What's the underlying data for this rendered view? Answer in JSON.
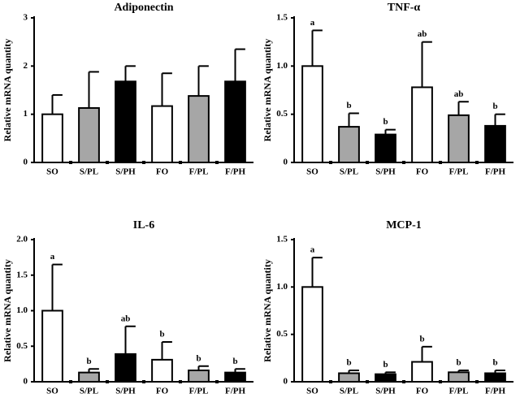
{
  "chart_data": [
    {
      "type": "bar",
      "title": "Adiponectin",
      "y_label": "Relative mRNA quantity",
      "categories": [
        "SO",
        "S/PL",
        "S/PH",
        "FO",
        "F/PL",
        "F/PH"
      ],
      "values": [
        1.0,
        1.13,
        1.68,
        1.17,
        1.38,
        1.68
      ],
      "errors": [
        0.4,
        0.75,
        0.32,
        0.68,
        0.62,
        0.67
      ],
      "colors": [
        "#ffffff",
        "#a6a6a6",
        "#000000",
        "#ffffff",
        "#a6a6a6",
        "#000000"
      ],
      "ylim": [
        0,
        3
      ],
      "yticks": [
        0,
        1,
        2,
        3
      ]
    },
    {
      "type": "bar",
      "title": "TNF-α",
      "y_label": "Relative mRNA quantity",
      "categories": [
        "SO",
        "S/PL",
        "S/PH",
        "FO",
        "F/PL",
        "F/PH"
      ],
      "values": [
        1.0,
        0.37,
        0.29,
        0.78,
        0.49,
        0.38
      ],
      "errors": [
        0.37,
        0.14,
        0.05,
        0.47,
        0.14,
        0.12
      ],
      "annotations": [
        "a",
        "b",
        "b",
        "ab",
        "ab",
        "b"
      ],
      "colors": [
        "#ffffff",
        "#a6a6a6",
        "#000000",
        "#ffffff",
        "#a6a6a6",
        "#000000"
      ],
      "ylim": [
        0,
        1.5
      ],
      "yticks": [
        0,
        0.5,
        {
          "value": 1,
          "label": "1.0"
        },
        1.5
      ]
    },
    {
      "type": "bar",
      "title": "IL-6",
      "y_label": "Relative mRNA quantity",
      "categories": [
        "SO",
        "S/PL",
        "S/PH",
        "FO",
        "F/PL",
        "F/PH"
      ],
      "values": [
        1.0,
        0.13,
        0.39,
        0.31,
        0.16,
        0.13
      ],
      "errors": [
        0.65,
        0.05,
        0.39,
        0.25,
        0.06,
        0.05
      ],
      "annotations": [
        "a",
        "b",
        "ab",
        "b",
        "b",
        "b"
      ],
      "colors": [
        "#ffffff",
        "#a6a6a6",
        "#000000",
        "#ffffff",
        "#a6a6a6",
        "#000000"
      ],
      "ylim": [
        0,
        2
      ],
      "yticks": [
        0,
        0.5,
        {
          "value": 1,
          "label": "1.0"
        },
        1.5,
        {
          "value": 2,
          "label": "2.0"
        }
      ]
    },
    {
      "type": "bar",
      "title": "MCP-1",
      "y_label": "Relative mRNA quantity",
      "categories": [
        "SO",
        "S/PL",
        "S/PH",
        "FO",
        "F/PL",
        "F/PH"
      ],
      "values": [
        1.0,
        0.09,
        0.08,
        0.21,
        0.1,
        0.09
      ],
      "errors": [
        0.31,
        0.03,
        0.02,
        0.16,
        0.02,
        0.03
      ],
      "annotations": [
        "a",
        "b",
        "b",
        "b",
        "b",
        "b"
      ],
      "colors": [
        "#ffffff",
        "#a6a6a6",
        "#000000",
        "#ffffff",
        "#a6a6a6",
        "#000000"
      ],
      "ylim": [
        0,
        1.5
      ],
      "yticks": [
        0,
        0.5,
        {
          "value": 1,
          "label": "1.0"
        },
        1.5
      ]
    }
  ]
}
